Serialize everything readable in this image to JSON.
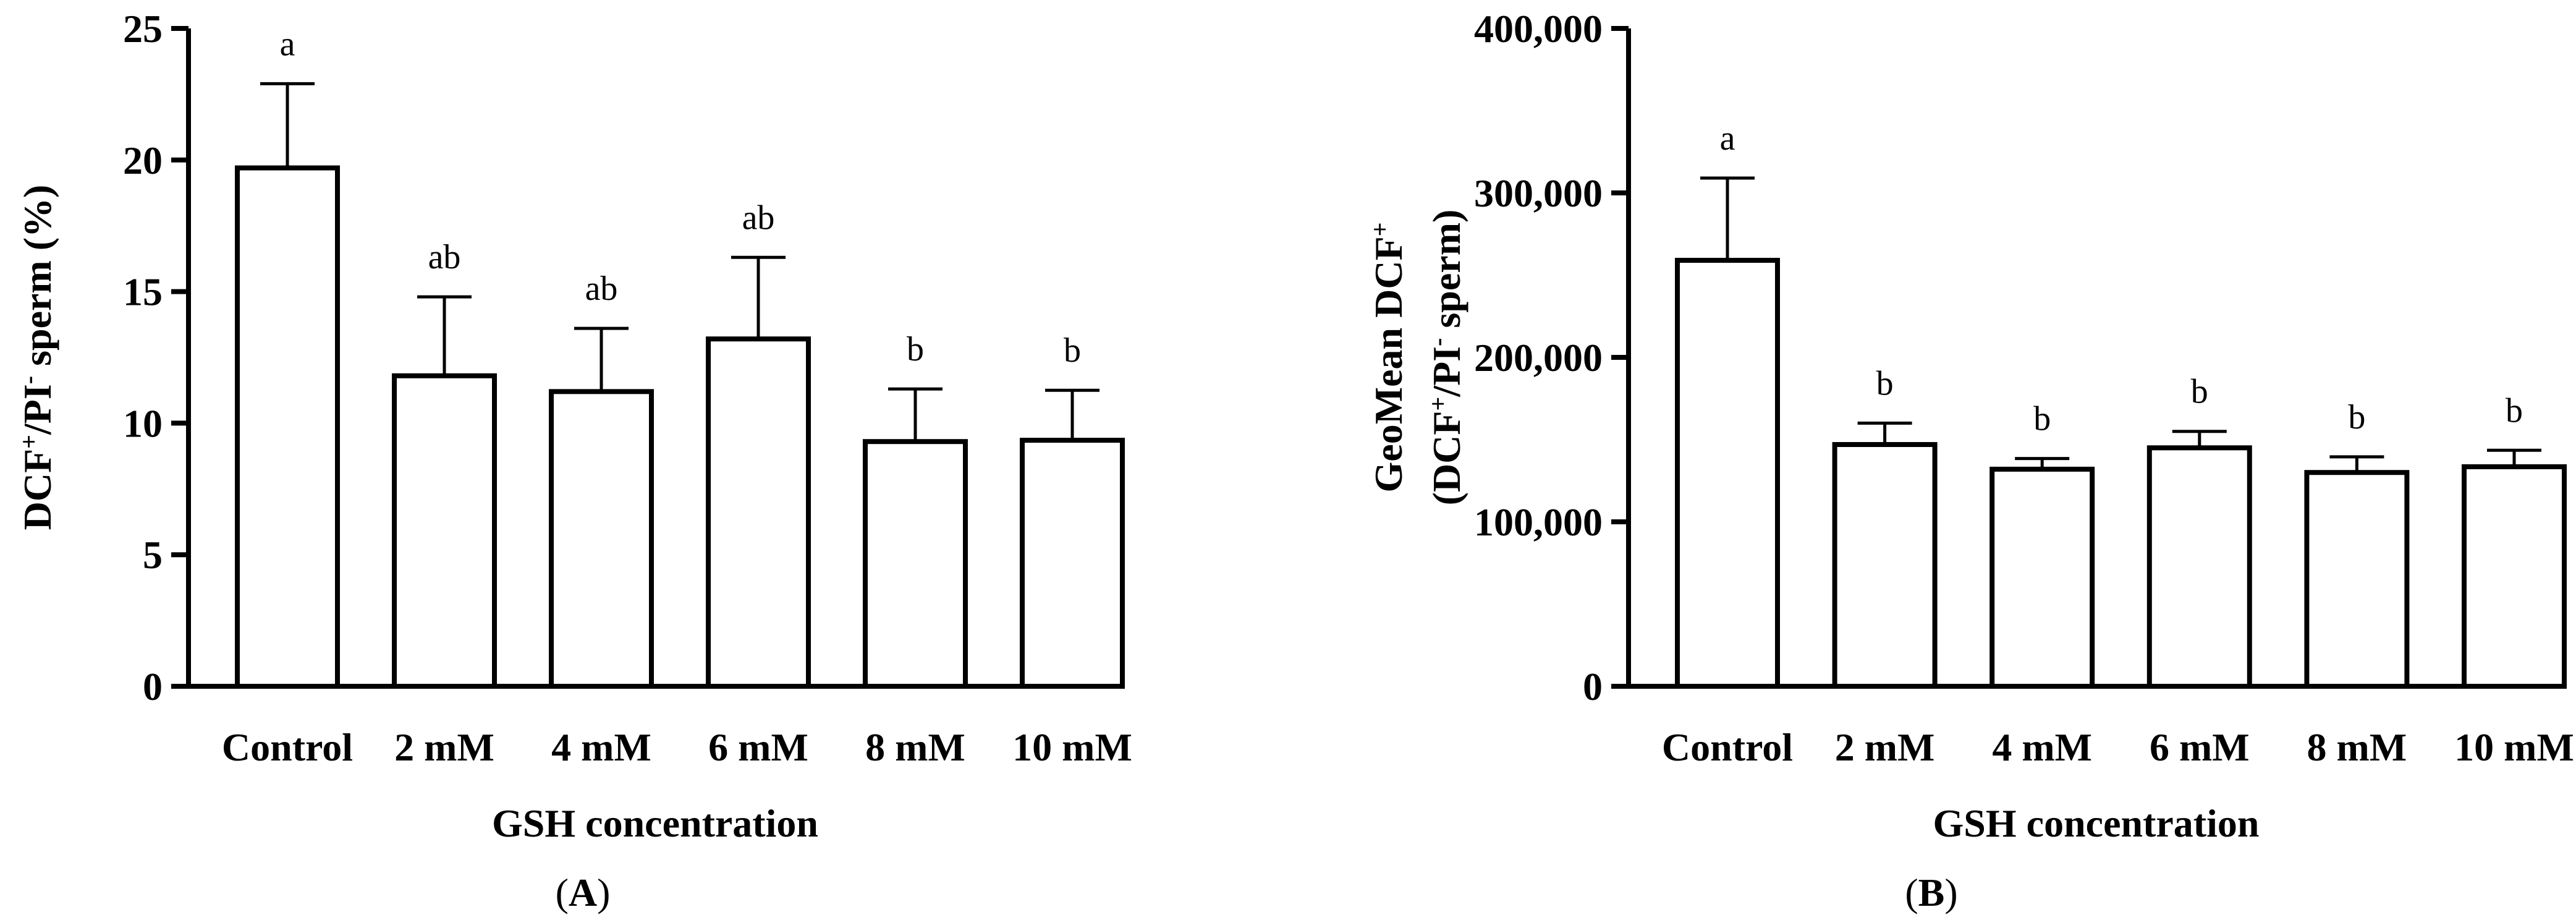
{
  "chart_data": [
    {
      "type": "bar",
      "panel_label": "A",
      "categories": [
        "Control",
        "2 mM",
        "4 mM",
        "6 mM",
        "8 mM",
        "10 mM"
      ],
      "values": [
        19.7,
        11.8,
        11.2,
        13.2,
        9.3,
        9.35
      ],
      "errors": [
        3.2,
        3.0,
        2.4,
        3.1,
        2.0,
        1.9
      ],
      "significance": [
        "a",
        "ab",
        "ab",
        "ab",
        "b",
        "b"
      ],
      "xlabel": "GSH concentration",
      "ylabel_parts": {
        "main": "DCF",
        "sup1": "+",
        "mid": "/PI",
        "sup2": "-",
        "end": " sperm (%)"
      },
      "ylim": [
        0,
        25
      ],
      "yticks": [
        "0",
        "5",
        "10",
        "15",
        "20",
        "25"
      ],
      "ytick_values": [
        0,
        5,
        10,
        15,
        20,
        25
      ]
    },
    {
      "type": "bar",
      "panel_label": "B",
      "categories": [
        "Control",
        "2 mM",
        "4 mM",
        "6 mM",
        "8 mM",
        "10 mM"
      ],
      "values": [
        259000,
        147000,
        132000,
        145000,
        130000,
        133500
      ],
      "errors": [
        50000,
        13000,
        6500,
        10000,
        9500,
        10000
      ],
      "significance": [
        "a",
        "b",
        "b",
        "b",
        "b",
        "b"
      ],
      "xlabel": "GSH concentration",
      "ylabel_line1_parts": {
        "main": "GeoMean DCF",
        "sup1": "+"
      },
      "ylabel_line2_parts": {
        "open": "(DCF",
        "sup1": "+",
        "mid": "/PI",
        "sup2": "-",
        "end": " sperm)"
      },
      "ylim": [
        0,
        400000
      ],
      "yticks": [
        "0",
        "100,000",
        "200,000",
        "300,000",
        "400,000"
      ],
      "ytick_values": [
        0,
        100000,
        200000,
        300000,
        400000
      ]
    }
  ]
}
